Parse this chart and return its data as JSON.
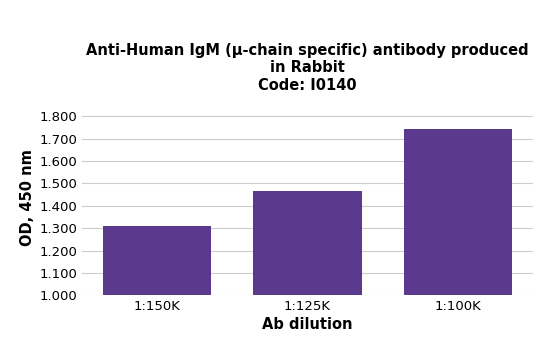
{
  "title_line1": "Anti-Human IgM (μ-chain specific) antibody produced",
  "title_line2": "in Rabbit",
  "title_line3": "Code: I0140",
  "categories": [
    "1:150K",
    "1:125K",
    "1:100K"
  ],
  "values": [
    1.31,
    1.465,
    1.745
  ],
  "bar_color": "#5b3a8e",
  "xlabel": "Ab dilution",
  "ylabel": "OD, 450 nm",
  "ylim": [
    1.0,
    1.87
  ],
  "yticks": [
    1.0,
    1.1,
    1.2,
    1.3,
    1.4,
    1.5,
    1.6,
    1.7,
    1.8
  ],
  "ytick_labels": [
    "1.000",
    "1.100",
    "1.200",
    "1.300",
    "1.400",
    "1.500",
    "1.600",
    "1.700",
    "1.800"
  ],
  "background_color": "#ffffff",
  "grid_color": "#cccccc",
  "title_fontsize": 10.5,
  "axis_label_fontsize": 10.5,
  "tick_fontsize": 9.5,
  "bar_width": 0.72
}
